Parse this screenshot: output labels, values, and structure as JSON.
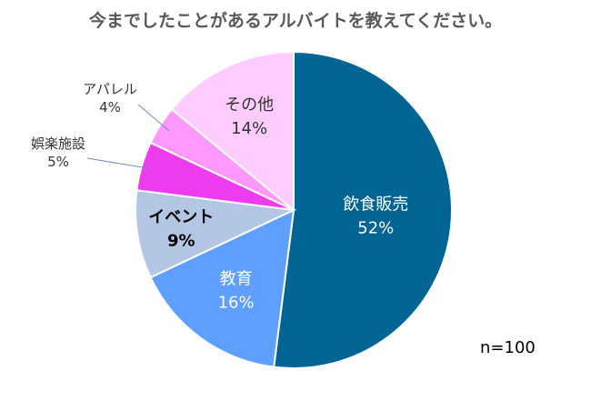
{
  "chart_data": {
    "type": "pie",
    "title": "今までしたことがあるアルバイトを教えてください。",
    "note": "n=100",
    "start": "12 o'clock",
    "direction": "clockwise",
    "slices": [
      {
        "name": "飲食販売",
        "value": 52,
        "label": "52%",
        "color": "#006494",
        "text_color": "#ffffff",
        "label_style": "inside"
      },
      {
        "name": "教育",
        "value": 16,
        "label": "16%",
        "color": "#5f9fff",
        "text_color": "#ffffff",
        "label_style": "inside"
      },
      {
        "name": "イベント",
        "value": 9,
        "label": "9%",
        "color": "#b3c6e4",
        "text_color": "#000000",
        "label_style": "inside-bold"
      },
      {
        "name": "娯楽施設",
        "value": 5,
        "label": "5%",
        "color": "#ee3bee",
        "text_color": "#333333",
        "label_style": "outside"
      },
      {
        "name": "アパレル",
        "value": 4,
        "label": "4%",
        "color": "#ff99ff",
        "text_color": "#333333",
        "label_style": "outside"
      },
      {
        "name": "その他",
        "value": 14,
        "label": "14%",
        "color": "#ffccff",
        "text_color": "#333333",
        "label_style": "inside"
      }
    ]
  }
}
